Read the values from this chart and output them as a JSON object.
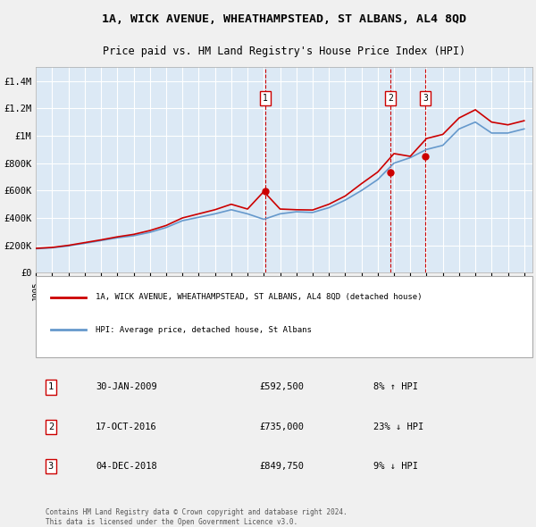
{
  "title": "1A, WICK AVENUE, WHEATHAMPSTEAD, ST ALBANS, AL4 8QD",
  "subtitle": "Price paid vs. HM Land Registry's House Price Index (HPI)",
  "background_color": "#dce9f5",
  "plot_bg_color": "#dce9f5",
  "grid_color": "#ffffff",
  "ylim": [
    0,
    1500000
  ],
  "yticks": [
    0,
    200000,
    400000,
    600000,
    800000,
    1000000,
    1200000,
    1400000
  ],
  "ytick_labels": [
    "£0",
    "£200K",
    "£400K",
    "£600K",
    "£800K",
    "£1M",
    "£1.2M",
    "£1.4M"
  ],
  "sale_dates": [
    "30-JAN-2009",
    "17-OCT-2016",
    "04-DEC-2018"
  ],
  "sale_prices": [
    592500,
    735000,
    849750
  ],
  "sale_labels": [
    "1",
    "2",
    "3"
  ],
  "sale_hpi_diff": [
    "8% ↑ HPI",
    "23% ↓ HPI",
    "9% ↓ HPI"
  ],
  "legend_house": "1A, WICK AVENUE, WHEATHAMPSTEAD, ST ALBANS, AL4 8QD (detached house)",
  "legend_hpi": "HPI: Average price, detached house, St Albans",
  "footer": "Contains HM Land Registry data © Crown copyright and database right 2024.\nThis data is licensed under the Open Government Licence v3.0.",
  "line_color_house": "#cc0000",
  "line_color_hpi": "#6699cc",
  "vline_color": "#cc0000",
  "marker_color_house": "#cc0000",
  "marker_color_hpi": "#6699cc",
  "hpi_years": [
    1995,
    1996,
    1997,
    1998,
    1999,
    2000,
    2001,
    2002,
    2003,
    2004,
    2005,
    2006,
    2007,
    2008,
    2009,
    2010,
    2011,
    2012,
    2013,
    2014,
    2015,
    2016,
    2017,
    2018,
    2019,
    2020,
    2021,
    2022,
    2023,
    2024,
    2025
  ],
  "hpi_values": [
    175000,
    182000,
    196000,
    215000,
    235000,
    255000,
    270000,
    295000,
    330000,
    380000,
    405000,
    430000,
    460000,
    430000,
    390000,
    430000,
    445000,
    440000,
    475000,
    530000,
    600000,
    680000,
    800000,
    840000,
    900000,
    930000,
    1050000,
    1100000,
    1020000,
    1020000,
    1050000
  ],
  "house_years": [
    1995,
    1996,
    1997,
    1998,
    1999,
    2000,
    2001,
    2002,
    2003,
    2004,
    2005,
    2006,
    2007,
    2008,
    2009,
    2010,
    2011,
    2012,
    2013,
    2014,
    2015,
    2016,
    2017,
    2018,
    2019,
    2020,
    2021,
    2022,
    2023,
    2024,
    2025
  ],
  "house_values": [
    178000,
    185000,
    200000,
    220000,
    240000,
    262000,
    280000,
    308000,
    345000,
    400000,
    430000,
    460000,
    500000,
    465000,
    592500,
    465000,
    460000,
    458000,
    500000,
    560000,
    650000,
    735000,
    870000,
    849750,
    980000,
    1010000,
    1130000,
    1190000,
    1100000,
    1080000,
    1110000
  ]
}
